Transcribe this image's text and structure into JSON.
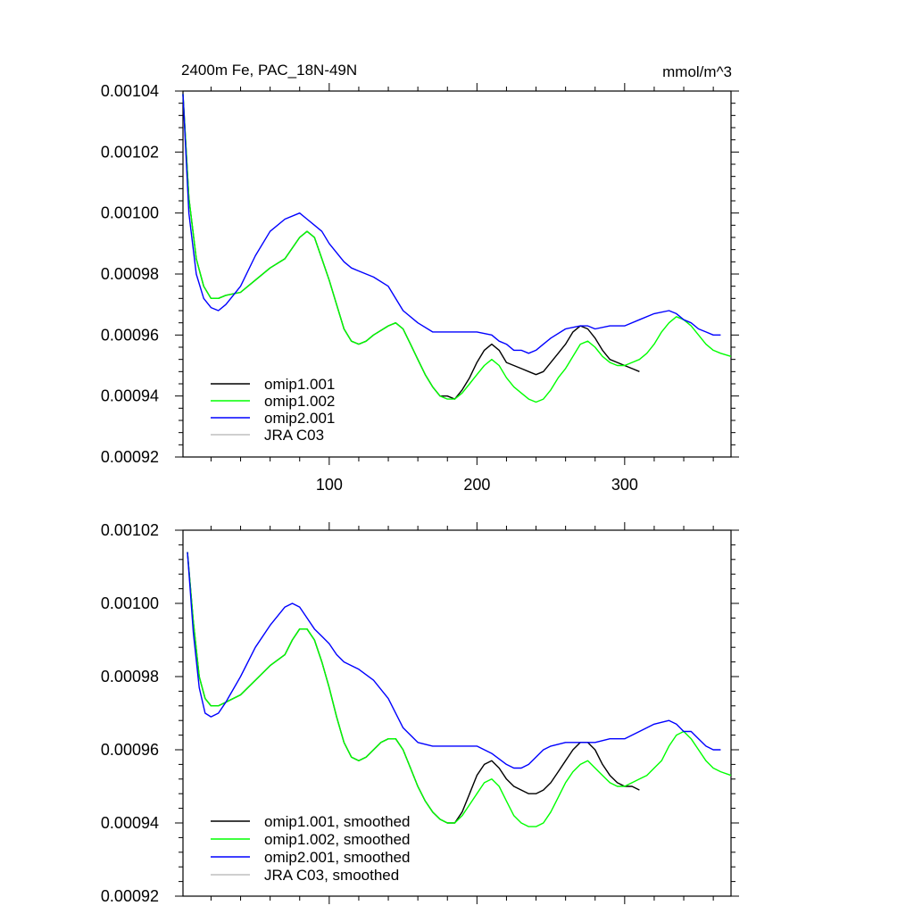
{
  "chart_data": [
    {
      "type": "line",
      "title": "2400m Fe, PAC_18N-49N",
      "units": "mmol/m^3",
      "xlim": [
        1,
        372
      ],
      "ylim": [
        0.00092,
        0.00104
      ],
      "xticks": [
        100,
        200,
        300
      ],
      "xtick_labels": [
        "100",
        "200",
        "300"
      ],
      "yticks": [
        0.00092,
        0.00094,
        0.00096,
        0.00098,
        0.001,
        0.00102,
        0.00104
      ],
      "ytick_labels": [
        "0.00092",
        "0.00094",
        "0.00096",
        "0.00098",
        "0.00100",
        "0.00102",
        "0.00104"
      ],
      "legend": "bottom-left",
      "series": [
        {
          "name": "omip1.001",
          "color": "#000000",
          "x": [
            1,
            5,
            10,
            15,
            20,
            25,
            30,
            40,
            50,
            60,
            70,
            80,
            85,
            90,
            95,
            100,
            105,
            110,
            115,
            120,
            125,
            130,
            140,
            145,
            150,
            155,
            160,
            165,
            170,
            175,
            180,
            185,
            190,
            195,
            200,
            205,
            210,
            215,
            220,
            225,
            230,
            235,
            240,
            245,
            250,
            255,
            260,
            265,
            270,
            275,
            280,
            285,
            290,
            295,
            300,
            305,
            310
          ],
          "y": [
            0.001039,
            0.001005,
            0.000985,
            0.000976,
            0.000972,
            0.000972,
            0.000973,
            0.000974,
            0.000978,
            0.000982,
            0.000985,
            0.000992,
            0.000994,
            0.000992,
            0.000985,
            0.000978,
            0.00097,
            0.000962,
            0.000958,
            0.000957,
            0.000958,
            0.00096,
            0.000963,
            0.000964,
            0.000962,
            0.000957,
            0.000952,
            0.000947,
            0.000943,
            0.00094,
            0.00094,
            0.000939,
            0.000942,
            0.000946,
            0.000951,
            0.000955,
            0.000957,
            0.000955,
            0.000951,
            0.00095,
            0.000949,
            0.000948,
            0.000947,
            0.000948,
            0.000951,
            0.000954,
            0.000957,
            0.000961,
            0.000963,
            0.000962,
            0.000959,
            0.000955,
            0.000952,
            0.000951,
            0.00095,
            0.000949,
            0.000948
          ]
        },
        {
          "name": "omip1.002",
          "color": "#00ff00",
          "x": [
            1,
            5,
            10,
            15,
            20,
            25,
            30,
            40,
            50,
            60,
            70,
            80,
            85,
            90,
            95,
            100,
            105,
            110,
            115,
            120,
            125,
            130,
            140,
            145,
            150,
            155,
            160,
            165,
            170,
            175,
            180,
            185,
            190,
            195,
            200,
            205,
            210,
            215,
            220,
            225,
            230,
            235,
            240,
            245,
            250,
            255,
            260,
            265,
            270,
            275,
            280,
            285,
            290,
            295,
            300,
            305,
            310,
            315,
            320,
            325,
            330,
            335,
            340,
            345,
            350,
            355,
            360,
            365,
            372
          ],
          "y": [
            0.001039,
            0.001005,
            0.000985,
            0.000976,
            0.000972,
            0.000972,
            0.000973,
            0.000974,
            0.000978,
            0.000982,
            0.000985,
            0.000992,
            0.000994,
            0.000992,
            0.000985,
            0.000978,
            0.00097,
            0.000962,
            0.000958,
            0.000957,
            0.000958,
            0.00096,
            0.000963,
            0.000964,
            0.000962,
            0.000957,
            0.000952,
            0.000947,
            0.000943,
            0.00094,
            0.000939,
            0.000939,
            0.000941,
            0.000944,
            0.000947,
            0.00095,
            0.000952,
            0.00095,
            0.000946,
            0.000943,
            0.000941,
            0.000939,
            0.000938,
            0.000939,
            0.000942,
            0.000946,
            0.000949,
            0.000953,
            0.000957,
            0.000958,
            0.000956,
            0.000953,
            0.000951,
            0.00095,
            0.00095,
            0.000951,
            0.000952,
            0.000954,
            0.000957,
            0.000961,
            0.000964,
            0.000966,
            0.000965,
            0.000963,
            0.00096,
            0.000957,
            0.000955,
            0.000954,
            0.000953
          ]
        },
        {
          "name": "omip2.001",
          "color": "#0000ff",
          "x": [
            1,
            5,
            10,
            15,
            20,
            25,
            30,
            40,
            50,
            60,
            70,
            80,
            85,
            90,
            95,
            100,
            105,
            110,
            115,
            120,
            125,
            130,
            140,
            150,
            160,
            170,
            180,
            190,
            200,
            210,
            215,
            220,
            225,
            230,
            235,
            240,
            245,
            250,
            260,
            270,
            275,
            280,
            290,
            300,
            310,
            320,
            330,
            335,
            340,
            345,
            350,
            355,
            360,
            365
          ],
          "y": [
            0.001039,
            0.001,
            0.00098,
            0.000972,
            0.000969,
            0.000968,
            0.00097,
            0.000976,
            0.000986,
            0.000994,
            0.000998,
            0.001,
            0.000998,
            0.000996,
            0.000994,
            0.00099,
            0.000987,
            0.000984,
            0.000982,
            0.000981,
            0.00098,
            0.000979,
            0.000976,
            0.000968,
            0.000964,
            0.000961,
            0.000961,
            0.000961,
            0.000961,
            0.00096,
            0.000958,
            0.000957,
            0.000955,
            0.000955,
            0.000954,
            0.000955,
            0.000957,
            0.000959,
            0.000962,
            0.000963,
            0.000963,
            0.000962,
            0.000963,
            0.000963,
            0.000965,
            0.000967,
            0.000968,
            0.000967,
            0.000965,
            0.000964,
            0.000962,
            0.000961,
            0.00096,
            0.00096
          ]
        },
        {
          "name": "JRA C03",
          "color": "#bfbfbf",
          "x": [],
          "y": []
        }
      ]
    },
    {
      "type": "line",
      "title": "",
      "xlim": [
        1,
        372
      ],
      "ylim": [
        0.00092,
        0.00102
      ],
      "xticks": [
        100,
        200,
        300
      ],
      "xtick_labels": [],
      "yticks": [
        0.00092,
        0.00094,
        0.00096,
        0.00098,
        0.001,
        0.00102
      ],
      "ytick_labels": [
        "0.00092",
        "0.00094",
        "0.00096",
        "0.00098",
        "0.00100",
        "0.00102"
      ],
      "legend": "bottom-left",
      "series": [
        {
          "name": "omip1.001, smoothed",
          "color": "#000000",
          "x": [
            4,
            8,
            12,
            16,
            20,
            25,
            30,
            40,
            50,
            60,
            70,
            75,
            80,
            85,
            90,
            95,
            100,
            105,
            110,
            115,
            120,
            125,
            130,
            135,
            140,
            145,
            150,
            155,
            160,
            165,
            170,
            175,
            180,
            185,
            190,
            195,
            200,
            205,
            210,
            215,
            220,
            225,
            230,
            235,
            240,
            245,
            250,
            255,
            260,
            265,
            270,
            275,
            280,
            285,
            290,
            295,
            300,
            305,
            310
          ],
          "y": [
            0.001014,
            0.000995,
            0.00098,
            0.000974,
            0.000972,
            0.000972,
            0.000973,
            0.000975,
            0.000979,
            0.000983,
            0.000986,
            0.00099,
            0.000993,
            0.000993,
            0.00099,
            0.000984,
            0.000977,
            0.000969,
            0.000962,
            0.000958,
            0.000957,
            0.000958,
            0.00096,
            0.000962,
            0.000963,
            0.000963,
            0.00096,
            0.000955,
            0.00095,
            0.000946,
            0.000943,
            0.000941,
            0.00094,
            0.00094,
            0.000943,
            0.000948,
            0.000953,
            0.000956,
            0.000957,
            0.000955,
            0.000952,
            0.00095,
            0.000949,
            0.000948,
            0.000948,
            0.000949,
            0.000951,
            0.000954,
            0.000957,
            0.00096,
            0.000962,
            0.000962,
            0.00096,
            0.000956,
            0.000953,
            0.000951,
            0.00095,
            0.00095,
            0.000949
          ]
        },
        {
          "name": "omip1.002, smoothed",
          "color": "#00ff00",
          "x": [
            4,
            8,
            12,
            16,
            20,
            25,
            30,
            40,
            50,
            60,
            70,
            75,
            80,
            85,
            90,
            95,
            100,
            105,
            110,
            115,
            120,
            125,
            130,
            135,
            140,
            145,
            150,
            155,
            160,
            165,
            170,
            175,
            180,
            185,
            190,
            195,
            200,
            205,
            210,
            215,
            220,
            225,
            230,
            235,
            240,
            245,
            250,
            255,
            260,
            265,
            270,
            275,
            280,
            285,
            290,
            295,
            300,
            305,
            310,
            315,
            320,
            325,
            330,
            335,
            340,
            345,
            350,
            355,
            360,
            365,
            372
          ],
          "y": [
            0.001014,
            0.000995,
            0.00098,
            0.000974,
            0.000972,
            0.000972,
            0.000973,
            0.000975,
            0.000979,
            0.000983,
            0.000986,
            0.00099,
            0.000993,
            0.000993,
            0.00099,
            0.000984,
            0.000977,
            0.000969,
            0.000962,
            0.000958,
            0.000957,
            0.000958,
            0.00096,
            0.000962,
            0.000963,
            0.000963,
            0.00096,
            0.000955,
            0.00095,
            0.000946,
            0.000943,
            0.000941,
            0.00094,
            0.00094,
            0.000942,
            0.000945,
            0.000948,
            0.000951,
            0.000952,
            0.00095,
            0.000946,
            0.000942,
            0.00094,
            0.000939,
            0.000939,
            0.00094,
            0.000943,
            0.000947,
            0.000951,
            0.000954,
            0.000956,
            0.000957,
            0.000955,
            0.000953,
            0.000951,
            0.00095,
            0.00095,
            0.000951,
            0.000952,
            0.000953,
            0.000955,
            0.000957,
            0.000961,
            0.000964,
            0.000965,
            0.000963,
            0.00096,
            0.000957,
            0.000955,
            0.000954,
            0.000953
          ]
        },
        {
          "name": "omip2.001, smoothed",
          "color": "#0000ff",
          "x": [
            4,
            8,
            12,
            16,
            20,
            25,
            30,
            40,
            50,
            60,
            70,
            75,
            80,
            85,
            90,
            95,
            100,
            105,
            110,
            115,
            120,
            130,
            140,
            150,
            160,
            170,
            180,
            190,
            200,
            210,
            220,
            225,
            230,
            235,
            240,
            245,
            250,
            260,
            270,
            275,
            280,
            290,
            300,
            310,
            320,
            330,
            335,
            340,
            345,
            350,
            355,
            360,
            365
          ],
          "y": [
            0.001014,
            0.000992,
            0.000977,
            0.00097,
            0.000969,
            0.00097,
            0.000973,
            0.00098,
            0.000988,
            0.000994,
            0.000999,
            0.001,
            0.000999,
            0.000996,
            0.000993,
            0.000991,
            0.000989,
            0.000986,
            0.000984,
            0.000983,
            0.000982,
            0.000979,
            0.000974,
            0.000966,
            0.000962,
            0.000961,
            0.000961,
            0.000961,
            0.000961,
            0.000959,
            0.000956,
            0.000955,
            0.000955,
            0.000956,
            0.000958,
            0.00096,
            0.000961,
            0.000962,
            0.000962,
            0.000962,
            0.000962,
            0.000963,
            0.000963,
            0.000965,
            0.000967,
            0.000968,
            0.000967,
            0.000965,
            0.000965,
            0.000963,
            0.000961,
            0.00096,
            0.00096
          ]
        },
        {
          "name": "JRA C03, smoothed",
          "color": "#bfbfbf",
          "x": [],
          "y": []
        }
      ]
    }
  ]
}
